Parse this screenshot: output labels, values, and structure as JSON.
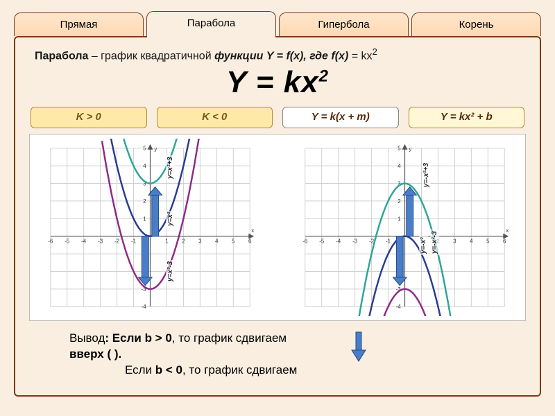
{
  "tabs": [
    {
      "label": "Прямая",
      "active": false
    },
    {
      "label": "Парабола",
      "active": true
    },
    {
      "label": "Гипербола",
      "active": false
    },
    {
      "label": "Корень",
      "active": false
    }
  ],
  "definition": {
    "term": "Парабола",
    "text_before": " – график квадратичной ",
    "func_word": "функции Y = f(x), где f(x)",
    "text_after": "  = kx",
    "sup": "2"
  },
  "main_formula": {
    "text": "Y = kx",
    "sup": "2"
  },
  "chips": [
    {
      "label": "K > 0",
      "bg": "#ffe9a8",
      "border": "#b58a2e",
      "color": "#7a5a12"
    },
    {
      "label": "K < 0",
      "bg": "#ffe9a8",
      "border": "#b58a2e",
      "color": "#7a5a12"
    },
    {
      "label": "Y = k(x + m)",
      "bg": "#ffffff",
      "border": "#888",
      "color": "#5a2a0a"
    },
    {
      "label": "Y = kx² + b",
      "bg": "#fff7d6",
      "border": "#b58a2e",
      "color": "#5a2a0a"
    }
  ],
  "charts": {
    "xlim": [
      -6,
      6
    ],
    "ylim": [
      -4,
      5
    ],
    "tick_step": 1,
    "grid_color": "#d0d0d0",
    "axis_color": "#555555",
    "background": "#ffffff",
    "left": {
      "orientation": "up",
      "curves": [
        {
          "label": "y=x²+3",
          "shift": 3,
          "color": "#2ea596"
        },
        {
          "label": "y=x²",
          "shift": 0,
          "color": "#2a3a8f"
        },
        {
          "label": "y=x²-3",
          "shift": -3,
          "color": "#8e2a87"
        }
      ],
      "arrows": [
        {
          "from_y": 0,
          "to_y": 2.8,
          "x": 0.3
        },
        {
          "from_y": 0,
          "to_y": -2.8,
          "x": -0.3
        }
      ]
    },
    "right": {
      "orientation": "down",
      "curves": [
        {
          "label": "y=-x²+3",
          "shift": 3,
          "color": "#2ea596"
        },
        {
          "label": "y=-x²",
          "shift": 0,
          "color": "#2a3a8f"
        },
        {
          "label": "y=-x²-3",
          "shift": -3,
          "color": "#8e2a87"
        }
      ],
      "arrows": [
        {
          "from_y": 0,
          "to_y": 2.8,
          "x": 0.3
        },
        {
          "from_y": 0,
          "to_y": -2.8,
          "x": -0.3
        }
      ]
    }
  },
  "conclusion": {
    "lead": "Вывод",
    "line1_a": ":   Если ",
    "line1_bold1": "b > 0",
    "line1_b": ", то график сдвигаем ",
    "line1_bold2": "вверх (    ).",
    "line2_a": "Если ",
    "line2_bold1": "b < 0",
    "line2_b": ", то график сдвигаем",
    "line3": "(    )."
  },
  "colors": {
    "page_bg": "#faeee0",
    "tab_border": "#7a3a1a",
    "tab_inactive_bg_top": "#ffe6cc",
    "tab_inactive_bg_bot": "#ffd9b3",
    "arrow_fill": "#4a7dc7",
    "arrow_stroke": "#1f4b8c"
  }
}
